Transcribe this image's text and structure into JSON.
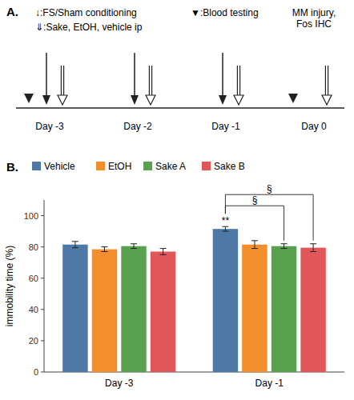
{
  "chart_data": [
    {
      "type": "timeline",
      "title": "A.",
      "categories": [
        "Day -3",
        "Day -2",
        "Day -1",
        "Day 0"
      ],
      "series": [
        {
          "name": "↓:FS/Sham conditioning",
          "marker": "arrow",
          "values": [
            1,
            1,
            1,
            null
          ]
        },
        {
          "name": "⇓:Sake, EtOH, vehicle ip",
          "marker": "open-arrow",
          "values": [
            1,
            1,
            1,
            1
          ]
        },
        {
          "name": "▼:Blood testing",
          "marker": "triangle",
          "values": [
            1,
            null,
            null,
            1
          ]
        }
      ],
      "annotations": [
        {
          "text": "MM injury,\nFos IHC",
          "x": "Day 0"
        }
      ]
    },
    {
      "type": "bar",
      "title": "B.",
      "categories": [
        "Day -3",
        "Day -1"
      ],
      "series": [
        {
          "name": "Vehicle",
          "values": [
            81.5,
            91.5
          ],
          "errors": [
            2.0,
            1.5
          ]
        },
        {
          "name": "EtOH",
          "values": [
            78.5,
            81.5
          ],
          "errors": [
            1.5,
            2.5
          ]
        },
        {
          "name": "Sake A",
          "values": [
            80.5,
            80.5
          ],
          "errors": [
            1.5,
            1.5
          ]
        },
        {
          "name": "Sake B",
          "values": [
            77.0,
            79.5
          ],
          "errors": [
            2.0,
            2.5
          ]
        }
      ],
      "ylabel": "immobility time (%)",
      "ylim": [
        0,
        110
      ],
      "yticks": [
        0,
        20,
        40,
        60,
        80,
        100
      ],
      "legend": "top",
      "annotations": [
        {
          "text": "**",
          "x": "Day -1",
          "series": "Vehicle"
        },
        {
          "text": "§",
          "x": "Day -1",
          "from": "Vehicle",
          "to": "Sake A"
        },
        {
          "text": "§",
          "x": "Day -1",
          "from": "Vehicle",
          "to": "Sake B"
        }
      ]
    }
  ]
}
